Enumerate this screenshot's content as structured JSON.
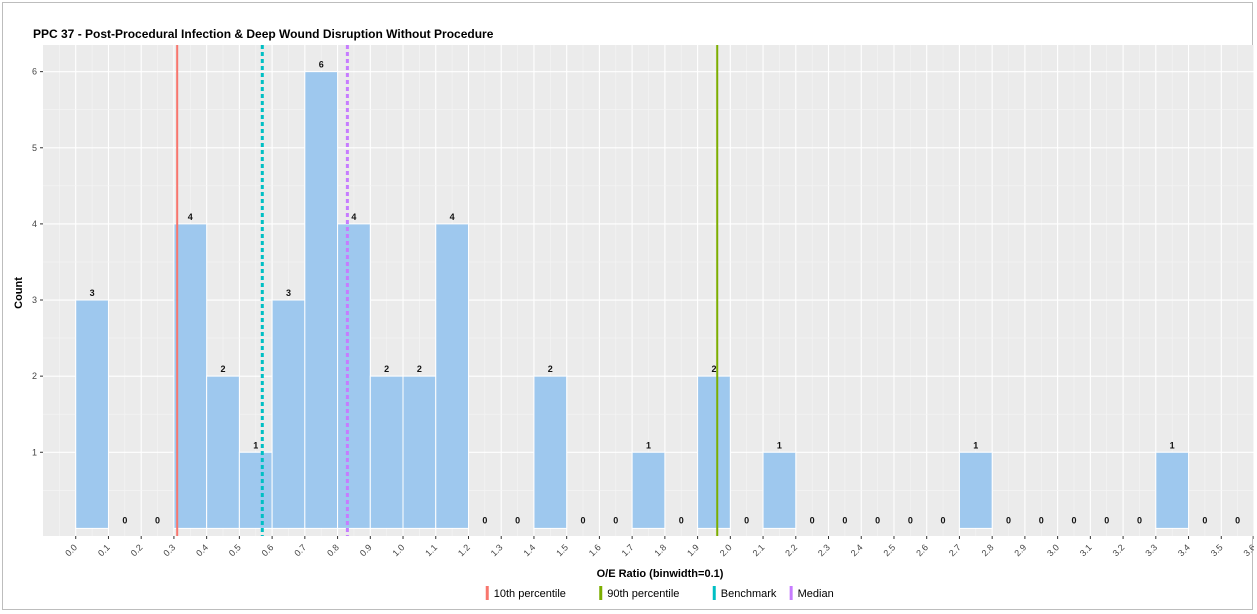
{
  "chart_data": {
    "type": "bar",
    "title": "PPC 37 - Post-Procedural Infection & Deep Wound Disruption Without Procedure",
    "xlabel": "O/E Ratio (binwidth=0.1)",
    "ylabel": "Count",
    "xlim": [
      -0.1,
      3.6
    ],
    "ylim": [
      -0.1,
      6.35
    ],
    "grid": true,
    "legend_position": "bottom",
    "x_ticks": [
      "0.0",
      "0.1",
      "0.2",
      "0.3",
      "0.4",
      "0.5",
      "0.6",
      "0.7",
      "0.8",
      "0.9",
      "1.0",
      "1.1",
      "1.2",
      "1.3",
      "1.4",
      "1.5",
      "1.6",
      "1.7",
      "1.8",
      "1.9",
      "2.0",
      "2.1",
      "2.2",
      "2.3",
      "2.4",
      "2.5",
      "2.6",
      "2.7",
      "2.8",
      "2.9",
      "3.0",
      "3.1",
      "3.2",
      "3.3",
      "3.4",
      "3.5",
      "3.6"
    ],
    "y_ticks": [
      "1",
      "2",
      "3",
      "4",
      "5",
      "6"
    ],
    "bins": [
      {
        "start": 0.0,
        "end": 0.1,
        "count": 3
      },
      {
        "start": 0.1,
        "end": 0.2,
        "count": 0
      },
      {
        "start": 0.2,
        "end": 0.3,
        "count": 0
      },
      {
        "start": 0.3,
        "end": 0.4,
        "count": 4
      },
      {
        "start": 0.4,
        "end": 0.5,
        "count": 2
      },
      {
        "start": 0.5,
        "end": 0.6,
        "count": 1
      },
      {
        "start": 0.6,
        "end": 0.7,
        "count": 3
      },
      {
        "start": 0.7,
        "end": 0.8,
        "count": 6
      },
      {
        "start": 0.8,
        "end": 0.9,
        "count": 4
      },
      {
        "start": 0.9,
        "end": 1.0,
        "count": 2
      },
      {
        "start": 1.0,
        "end": 1.1,
        "count": 2
      },
      {
        "start": 1.1,
        "end": 1.2,
        "count": 4
      },
      {
        "start": 1.2,
        "end": 1.3,
        "count": 0
      },
      {
        "start": 1.3,
        "end": 1.4,
        "count": 0
      },
      {
        "start": 1.4,
        "end": 1.5,
        "count": 2
      },
      {
        "start": 1.5,
        "end": 1.6,
        "count": 0
      },
      {
        "start": 1.6,
        "end": 1.7,
        "count": 0
      },
      {
        "start": 1.7,
        "end": 1.8,
        "count": 1
      },
      {
        "start": 1.8,
        "end": 1.9,
        "count": 0
      },
      {
        "start": 1.9,
        "end": 2.0,
        "count": 2
      },
      {
        "start": 2.0,
        "end": 2.1,
        "count": 0
      },
      {
        "start": 2.1,
        "end": 2.2,
        "count": 1
      },
      {
        "start": 2.2,
        "end": 2.3,
        "count": 0
      },
      {
        "start": 2.3,
        "end": 2.4,
        "count": 0
      },
      {
        "start": 2.4,
        "end": 2.5,
        "count": 0
      },
      {
        "start": 2.5,
        "end": 2.6,
        "count": 0
      },
      {
        "start": 2.6,
        "end": 2.7,
        "count": 0
      },
      {
        "start": 2.7,
        "end": 2.8,
        "count": 1
      },
      {
        "start": 2.8,
        "end": 2.9,
        "count": 0
      },
      {
        "start": 2.9,
        "end": 3.0,
        "count": 0
      },
      {
        "start": 3.0,
        "end": 3.1,
        "count": 0
      },
      {
        "start": 3.1,
        "end": 3.2,
        "count": 0
      },
      {
        "start": 3.2,
        "end": 3.3,
        "count": 0
      },
      {
        "start": 3.3,
        "end": 3.4,
        "count": 1
      },
      {
        "start": 3.4,
        "end": 3.5,
        "count": 0
      },
      {
        "start": 3.5,
        "end": 3.6,
        "count": 0
      }
    ],
    "reference_lines": [
      {
        "name": "10th percentile",
        "value": 0.31,
        "color": "#f8766d",
        "style": "solid"
      },
      {
        "name": "90th percentile",
        "value": 1.96,
        "color": "#7cae00",
        "style": "solid"
      },
      {
        "name": "Benchmark",
        "value": 0.57,
        "color": "#00bfc4",
        "style": "dashed"
      },
      {
        "name": "Median",
        "value": 0.83,
        "color": "#c77cff",
        "style": "dashed"
      }
    ],
    "bar_color": "#9ec8ee",
    "panel_color": "#ebebeb"
  }
}
